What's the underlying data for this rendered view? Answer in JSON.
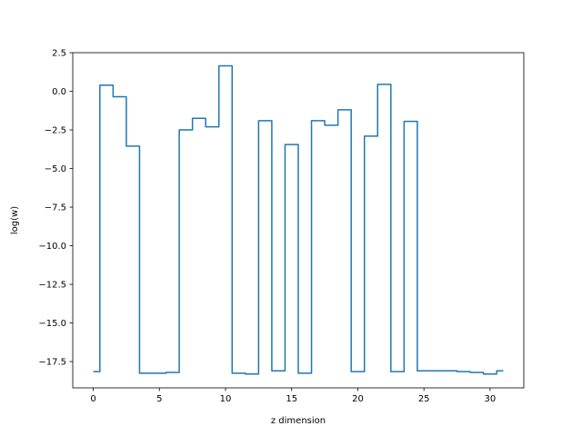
{
  "chart_data": {
    "type": "line",
    "drawstyle": "steps-mid",
    "title": "",
    "xlabel": "z dimension",
    "ylabel": "log(w)",
    "xlim": [
      -1.55,
      32.55
    ],
    "ylim": [
      -19.2,
      2.5
    ],
    "xticks": [
      0,
      5,
      10,
      15,
      20,
      25,
      30
    ],
    "xtick_labels": [
      "0",
      "5",
      "10",
      "15",
      "20",
      "25",
      "30"
    ],
    "yticks": [
      2.5,
      0.0,
      -2.5,
      -5.0,
      -7.5,
      -10.0,
      -12.5,
      -15.0,
      -17.5
    ],
    "ytick_labels": [
      "2.5",
      "0.0",
      "−2.5",
      "−5.0",
      "−7.5",
      "−10.0",
      "−12.5",
      "−15.0",
      "−17.5"
    ],
    "grid": false,
    "color": "#1f77b4",
    "series": [
      {
        "x": [
          0,
          1,
          2,
          3,
          4,
          5,
          6,
          7,
          8,
          9,
          10,
          11,
          12,
          13,
          14,
          15,
          16,
          17,
          18,
          19,
          20,
          21,
          22,
          23,
          24,
          25,
          26,
          27,
          28,
          29,
          30,
          31
        ],
        "values": [
          -18.15,
          0.4,
          -0.35,
          -3.55,
          -18.25,
          -18.25,
          -18.2,
          -2.5,
          -1.75,
          -2.3,
          1.65,
          -18.25,
          -18.3,
          -1.9,
          -18.1,
          -3.45,
          -18.25,
          -1.9,
          -2.2,
          -1.2,
          -18.15,
          -2.9,
          0.45,
          -18.15,
          -1.95,
          -18.1,
          -18.1,
          -18.1,
          -18.15,
          -18.2,
          -18.3,
          -18.1
        ]
      }
    ]
  }
}
